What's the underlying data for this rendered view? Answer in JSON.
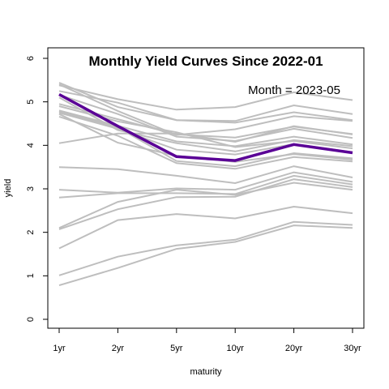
{
  "chart_data": {
    "type": "line",
    "title": "Monthly Yield Curves Since 2022-01",
    "annotation": "Month = 2023-05",
    "xlabel": "maturity",
    "ylabel": "yield",
    "categories": [
      "1yr",
      "2yr",
      "5yr",
      "10yr",
      "20yr",
      "30yr"
    ],
    "ylim": [
      0,
      6
    ],
    "yticks": [
      0,
      1,
      2,
      3,
      4,
      5,
      6
    ],
    "grid": false,
    "legend": "none",
    "background_color": "#bebebe",
    "highlight_color": "#5a0096",
    "background_series": [
      [
        0.78,
        1.18,
        1.62,
        1.78,
        2.16,
        2.1
      ],
      [
        1.01,
        1.44,
        1.7,
        1.83,
        2.24,
        2.17
      ],
      [
        1.63,
        2.28,
        2.42,
        2.32,
        2.59,
        2.44
      ],
      [
        2.1,
        2.7,
        2.98,
        2.86,
        3.14,
        2.98
      ],
      [
        2.07,
        2.53,
        2.81,
        2.82,
        3.22,
        3.04
      ],
      [
        2.8,
        2.9,
        2.9,
        2.88,
        3.3,
        3.1
      ],
      [
        2.98,
        2.91,
        3.01,
        2.98,
        3.38,
        3.16
      ],
      [
        3.5,
        3.45,
        3.3,
        3.13,
        3.52,
        3.26
      ],
      [
        4.05,
        4.27,
        4.27,
        4.08,
        4.44,
        4.25
      ],
      [
        4.72,
        4.06,
        3.76,
        3.62,
        3.8,
        3.67
      ],
      [
        4.66,
        4.22,
        3.59,
        3.46,
        3.73,
        3.63
      ],
      [
        4.78,
        4.41,
        3.64,
        3.52,
        3.82,
        3.7
      ],
      [
        4.75,
        4.38,
        3.9,
        3.79,
        4.03,
        3.84
      ],
      [
        4.8,
        4.45,
        4.09,
        3.98,
        4.2,
        4.02
      ],
      [
        4.95,
        4.6,
        4.25,
        4.18,
        4.43,
        4.26
      ],
      [
        5.38,
        5.06,
        4.82,
        4.88,
        5.22,
        5.04
      ],
      [
        5.44,
        4.88,
        4.58,
        4.56,
        4.92,
        4.72
      ],
      [
        5.4,
        4.79,
        4.24,
        4.37,
        4.67,
        4.56
      ],
      [
        5.25,
        4.98,
        4.58,
        4.52,
        4.76,
        4.58
      ],
      [
        5.16,
        4.72,
        4.2,
        4.1,
        4.38,
        4.17
      ],
      [
        4.9,
        4.55,
        4.3,
        3.96,
        4.1,
        3.93
      ],
      [
        5.1,
        4.35,
        4.05,
        3.86,
        4.12,
        3.98
      ]
    ],
    "highlight_series": {
      "name": "2023-05",
      "values": [
        5.17,
        4.44,
        3.74,
        3.65,
        4.02,
        3.83
      ]
    }
  }
}
